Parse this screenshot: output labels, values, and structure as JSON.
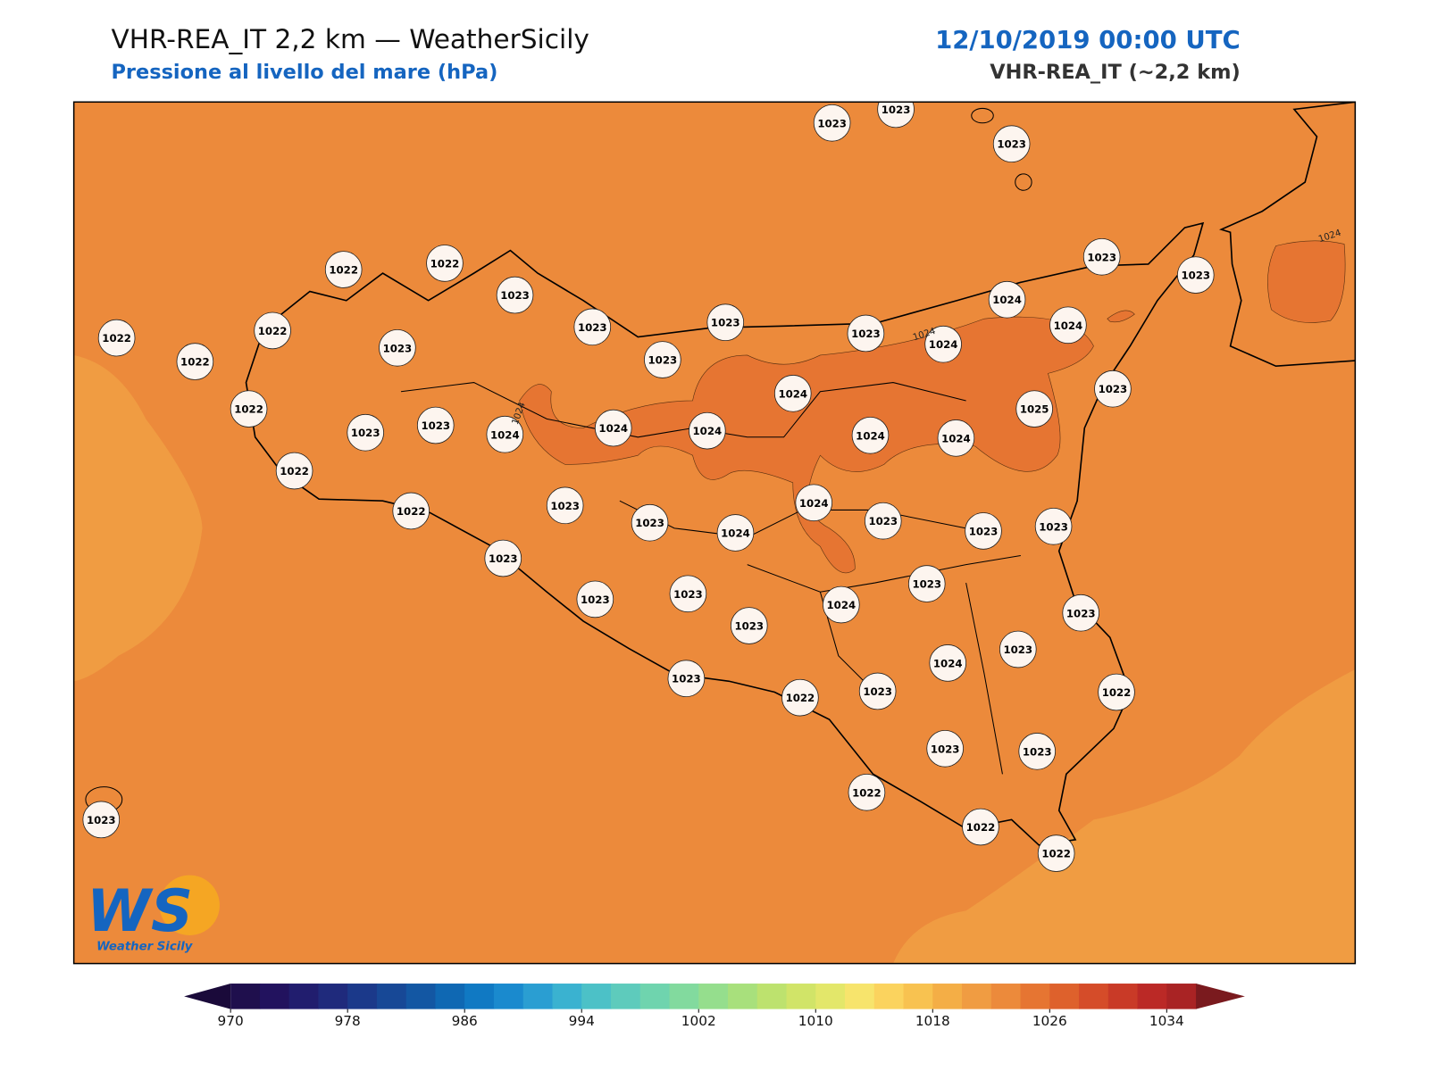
{
  "header": {
    "title": "VHR-REA_IT 2,2 km — WeatherSicily",
    "subtitle": "Pressione al livello del mare (hPa)",
    "datetime": "12/10/2019 00:00 UTC",
    "model": "VHR-REA_IT (~2,2 km)"
  },
  "map": {
    "station_labels": [
      1023,
      1023,
      1023,
      1022,
      1022,
      1023,
      1023,
      1023,
      1023,
      1023,
      1024,
      1024,
      1024,
      1023,
      1023,
      1022,
      1022,
      1022,
      1023,
      1022,
      1023,
      1023,
      1024,
      1024,
      1024,
      1024,
      1024,
      1024,
      1025,
      1023,
      1022,
      1022,
      1023,
      1023,
      1024,
      1024,
      1023,
      1023,
      1023,
      1023,
      1023,
      1023,
      1023,
      1024,
      1023,
      1023,
      1024,
      1023,
      1023,
      1022,
      1023,
      1022,
      1023,
      1023,
      1022,
      1022,
      1022,
      1023
    ],
    "contour_labels": [
      "1024",
      "1024",
      "1024"
    ]
  },
  "logo": {
    "mark": "WS",
    "text": "Weather Sicily"
  },
  "colorbar": {
    "ticks": [
      970,
      978,
      986,
      994,
      1002,
      1010,
      1018,
      1026,
      1034
    ]
  }
}
